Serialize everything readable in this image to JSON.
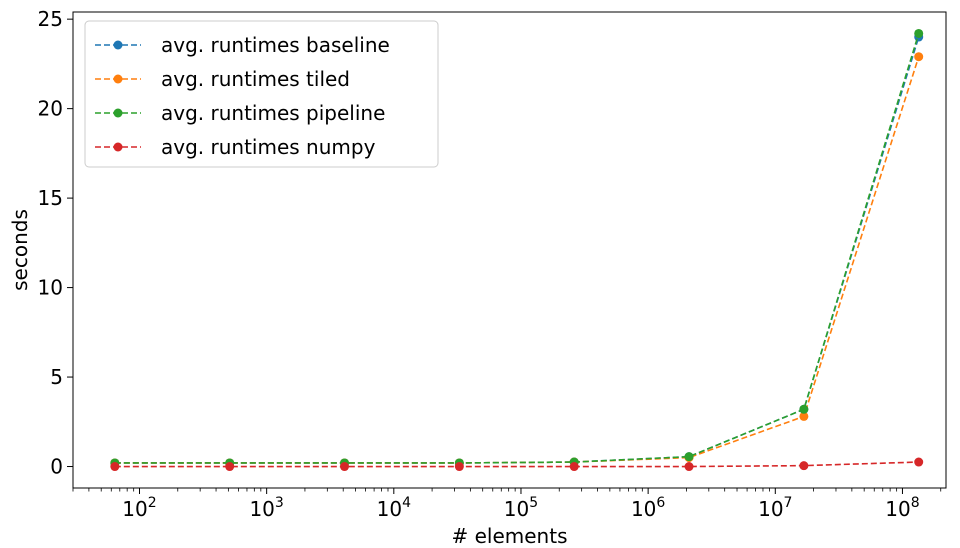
{
  "chart_data": {
    "type": "line",
    "title": "",
    "xlabel": "# elements",
    "ylabel": "seconds",
    "xscale": "log",
    "xlim": [
      30,
      220000000
    ],
    "ylim": [
      -1.2,
      25.4
    ],
    "xticks": [
      {
        "value": 100,
        "base": "10",
        "exp": "2"
      },
      {
        "value": 1000,
        "base": "10",
        "exp": "3"
      },
      {
        "value": 10000,
        "base": "10",
        "exp": "4"
      },
      {
        "value": 100000,
        "base": "10",
        "exp": "5"
      },
      {
        "value": 1000000,
        "base": "10",
        "exp": "6"
      },
      {
        "value": 10000000,
        "base": "10",
        "exp": "7"
      },
      {
        "value": 100000000,
        "base": "10",
        "exp": "8"
      }
    ],
    "yticks": [
      0,
      5,
      10,
      15,
      20,
      25
    ],
    "grid": false,
    "legend_position": "top-left",
    "x": [
      64,
      512,
      4096,
      32768,
      262144,
      2097152,
      16777216,
      134217728
    ],
    "series": [
      {
        "name": "avg. runtimes baseline",
        "color": "#1f77b4",
        "values": [
          0.2,
          0.2,
          0.2,
          0.2,
          0.25,
          0.55,
          3.2,
          24.0
        ]
      },
      {
        "name": "avg. runtimes tiled",
        "color": "#ff7f0e",
        "values": [
          0.2,
          0.2,
          0.2,
          0.2,
          0.25,
          0.5,
          2.8,
          22.9
        ]
      },
      {
        "name": "avg. runtimes pipeline",
        "color": "#2ca02c",
        "values": [
          0.2,
          0.2,
          0.2,
          0.2,
          0.25,
          0.55,
          3.2,
          24.2
        ]
      },
      {
        "name": "avg. runtimes numpy",
        "color": "#d62728",
        "values": [
          0.0,
          0.0,
          0.0,
          0.0,
          0.0,
          0.0,
          0.05,
          0.25
        ]
      }
    ]
  }
}
